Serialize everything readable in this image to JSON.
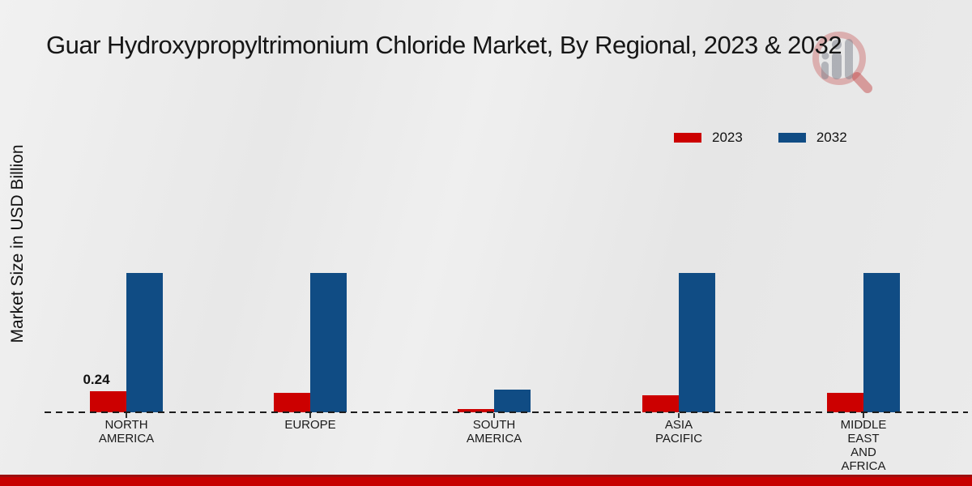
{
  "header": {
    "title": "Guar Hydroxypropyltrimonium Chloride Market, By Regional, 2023 & 2032"
  },
  "axis": {
    "y_label": "Market Size in USD Billion"
  },
  "legend": {
    "items": [
      {
        "label": "2023",
        "color": "#cc0000"
      },
      {
        "label": "2032",
        "color": "#104c84"
      }
    ]
  },
  "logo": {
    "icon": "magnifier-with-bars-icon",
    "ring_color": "#c23c3c",
    "bar_color": "#7d828c"
  },
  "footer": {
    "color": "#c70000"
  },
  "colors": {
    "series_2023": "#cc0000",
    "series_2032": "#104c84",
    "background": "#e9e9e9",
    "title_text": "#161616"
  },
  "chart_data": {
    "type": "bar",
    "title": "Guar Hydroxypropyltrimonium Chloride Market, By Regional, 2023 & 2032",
    "xlabel": "",
    "ylabel": "Market Size in USD Billion",
    "categories": [
      "NORTH\nAMERICA",
      "EUROPE",
      "SOUTH\nAMERICA",
      "ASIA\nPACIFIC",
      "MIDDLE\nEAST\nAND\nAFRICA"
    ],
    "series": [
      {
        "name": "2023",
        "color": "#cc0000",
        "values": [
          0.24,
          0.22,
          0.04,
          0.19,
          0.22
        ]
      },
      {
        "name": "2032",
        "color": "#104c84",
        "values": [
          1.59,
          1.59,
          0.26,
          1.59,
          1.59
        ]
      }
    ],
    "value_labels": [
      {
        "series": "2023",
        "category_index": 0,
        "text": "0.24"
      }
    ],
    "ylim": [
      0,
      1.65
    ],
    "grid": false,
    "legend_position": "top-right",
    "baseline_style": "dashed",
    "y_ticks_visible": false
  }
}
